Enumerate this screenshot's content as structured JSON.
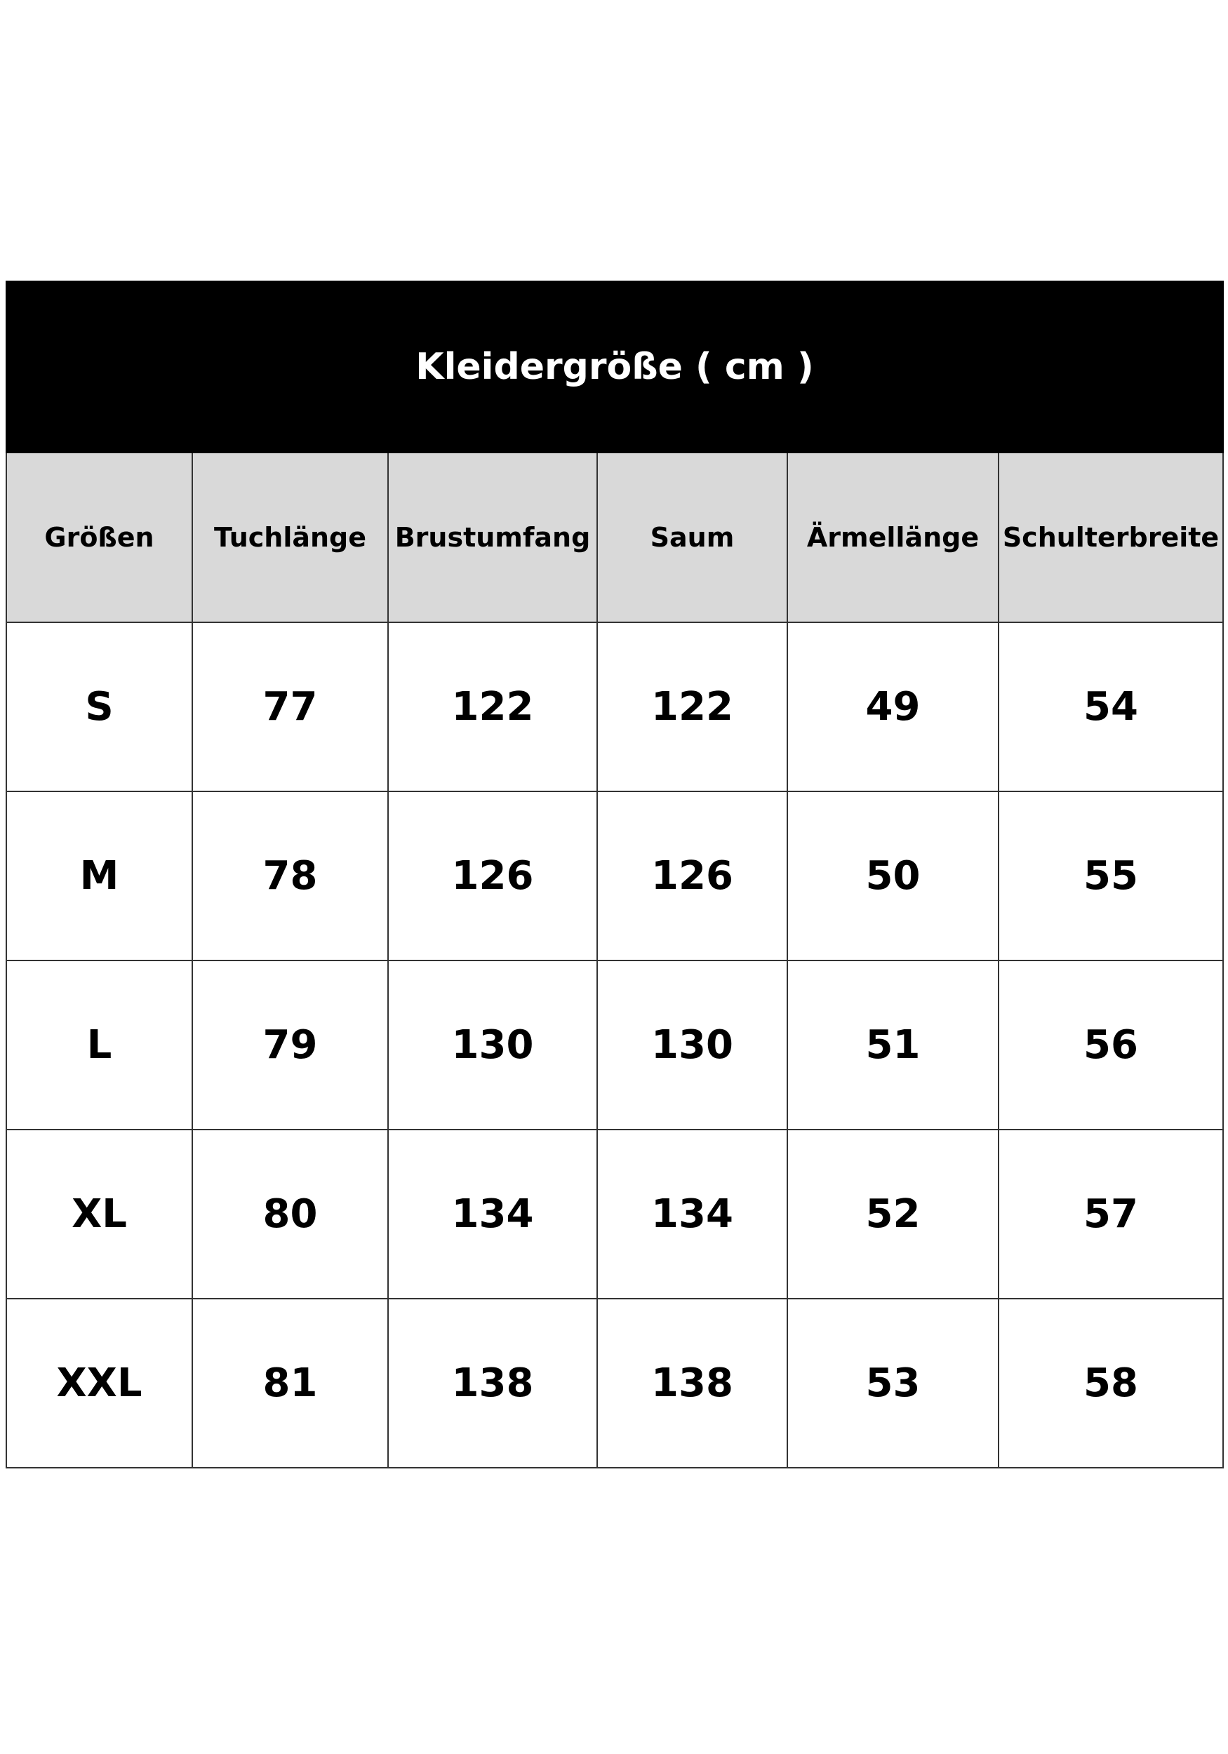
{
  "table": {
    "title": "Kleidergröße ( cm )",
    "headers": [
      "Größen",
      "Tuchlänge",
      "Brustumfang",
      "Saum",
      "Ärmellänge",
      "Schulterbreite"
    ],
    "rows": [
      [
        "S",
        "77",
        "122",
        "122",
        "49",
        "54"
      ],
      [
        "M",
        "78",
        "126",
        "126",
        "50",
        "55"
      ],
      [
        "L",
        "79",
        "130",
        "130",
        "51",
        "56"
      ],
      [
        "XL",
        "80",
        "134",
        "134",
        "52",
        "57"
      ],
      [
        "XXL",
        "81",
        "138",
        "138",
        "53",
        "58"
      ]
    ]
  },
  "colors": {
    "title_background": "#000000",
    "title_text": "#ffffff",
    "header_background": "#d9d9d9",
    "border": "#333333"
  }
}
